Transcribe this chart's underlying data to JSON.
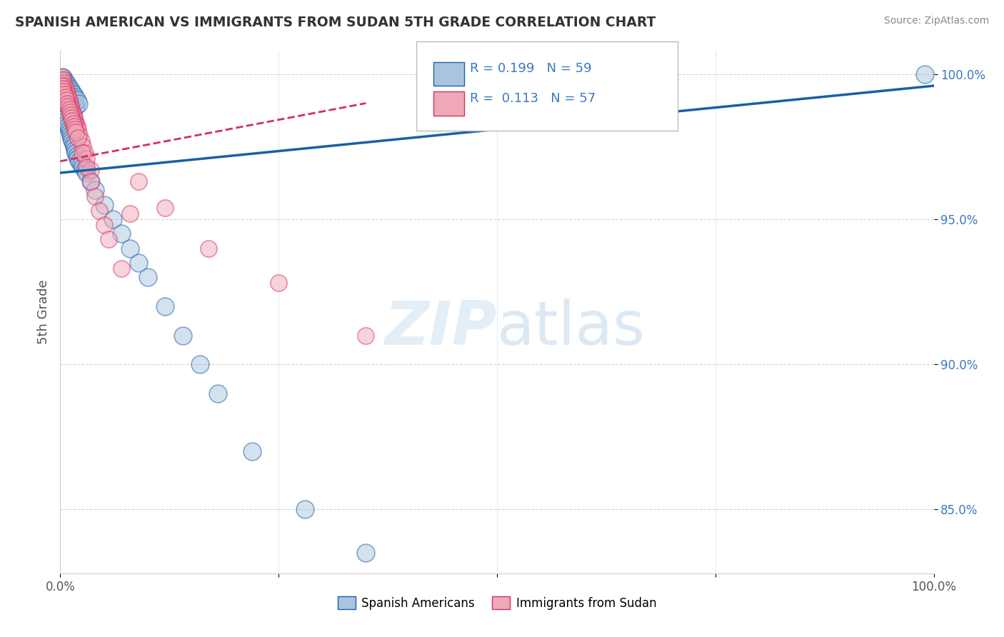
{
  "title": "SPANISH AMERICAN VS IMMIGRANTS FROM SUDAN 5TH GRADE CORRELATION CHART",
  "source": "Source: ZipAtlas.com",
  "ylabel": "5th Grade",
  "xlim": [
    0.0,
    1.0
  ],
  "ylim": [
    0.828,
    1.008
  ],
  "yticks": [
    0.85,
    0.9,
    0.95,
    1.0
  ],
  "ytick_labels": [
    "85.0%",
    "90.0%",
    "95.0%",
    "100.0%"
  ],
  "xticks": [
    0.0,
    0.25,
    0.5,
    0.75,
    1.0
  ],
  "xtick_labels": [
    "0.0%",
    "",
    "",
    "",
    "100.0%"
  ],
  "blue_color": "#aac4e0",
  "pink_color": "#f0a8b8",
  "blue_line_color": "#1a5fa8",
  "pink_line_color": "#d43060",
  "legend_r_blue": "0.199",
  "legend_n_blue": "59",
  "legend_r_pink": "0.113",
  "legend_n_pink": "57",
  "watermark_zip": "ZIP",
  "watermark_atlas": "atlas",
  "blue_x": [
    0.003,
    0.005,
    0.007,
    0.008,
    0.009,
    0.01,
    0.012,
    0.014,
    0.016,
    0.018,
    0.003,
    0.004,
    0.005,
    0.006,
    0.007,
    0.008,
    0.009,
    0.01,
    0.011,
    0.012,
    0.013,
    0.014,
    0.015,
    0.016,
    0.017,
    0.018,
    0.019,
    0.02,
    0.022,
    0.024,
    0.026,
    0.028,
    0.03,
    0.035,
    0.04,
    0.05,
    0.06,
    0.07,
    0.08,
    0.09,
    0.1,
    0.12,
    0.14,
    0.16,
    0.18,
    0.22,
    0.28,
    0.35,
    0.003,
    0.005,
    0.007,
    0.009,
    0.011,
    0.013,
    0.015,
    0.017,
    0.019,
    0.021,
    0.99
  ],
  "blue_y": [
    0.998,
    0.997,
    0.996,
    0.995,
    0.994,
    0.993,
    0.992,
    0.991,
    0.99,
    0.989,
    0.988,
    0.987,
    0.986,
    0.985,
    0.984,
    0.983,
    0.982,
    0.981,
    0.98,
    0.979,
    0.978,
    0.977,
    0.976,
    0.975,
    0.974,
    0.973,
    0.972,
    0.971,
    0.97,
    0.969,
    0.968,
    0.967,
    0.966,
    0.963,
    0.96,
    0.955,
    0.95,
    0.945,
    0.94,
    0.935,
    0.93,
    0.92,
    0.91,
    0.9,
    0.89,
    0.87,
    0.85,
    0.835,
    0.999,
    0.998,
    0.997,
    0.996,
    0.995,
    0.994,
    0.993,
    0.992,
    0.991,
    0.99,
    1.0
  ],
  "pink_x": [
    0.002,
    0.003,
    0.004,
    0.005,
    0.006,
    0.007,
    0.008,
    0.009,
    0.01,
    0.011,
    0.012,
    0.013,
    0.014,
    0.015,
    0.016,
    0.017,
    0.018,
    0.019,
    0.02,
    0.022,
    0.024,
    0.026,
    0.028,
    0.03,
    0.035,
    0.002,
    0.003,
    0.004,
    0.005,
    0.006,
    0.007,
    0.008,
    0.009,
    0.01,
    0.011,
    0.012,
    0.013,
    0.014,
    0.015,
    0.016,
    0.017,
    0.018,
    0.02,
    0.025,
    0.03,
    0.035,
    0.04,
    0.045,
    0.05,
    0.055,
    0.07,
    0.08,
    0.09,
    0.12,
    0.17,
    0.25,
    0.35
  ],
  "pink_y": [
    0.999,
    0.998,
    0.997,
    0.996,
    0.995,
    0.994,
    0.993,
    0.992,
    0.991,
    0.99,
    0.989,
    0.988,
    0.987,
    0.986,
    0.985,
    0.984,
    0.983,
    0.982,
    0.981,
    0.979,
    0.977,
    0.975,
    0.973,
    0.971,
    0.967,
    0.996,
    0.995,
    0.994,
    0.993,
    0.992,
    0.991,
    0.99,
    0.989,
    0.988,
    0.987,
    0.986,
    0.985,
    0.984,
    0.983,
    0.982,
    0.981,
    0.98,
    0.978,
    0.973,
    0.968,
    0.963,
    0.958,
    0.953,
    0.948,
    0.943,
    0.933,
    0.952,
    0.963,
    0.954,
    0.94,
    0.928,
    0.91
  ]
}
